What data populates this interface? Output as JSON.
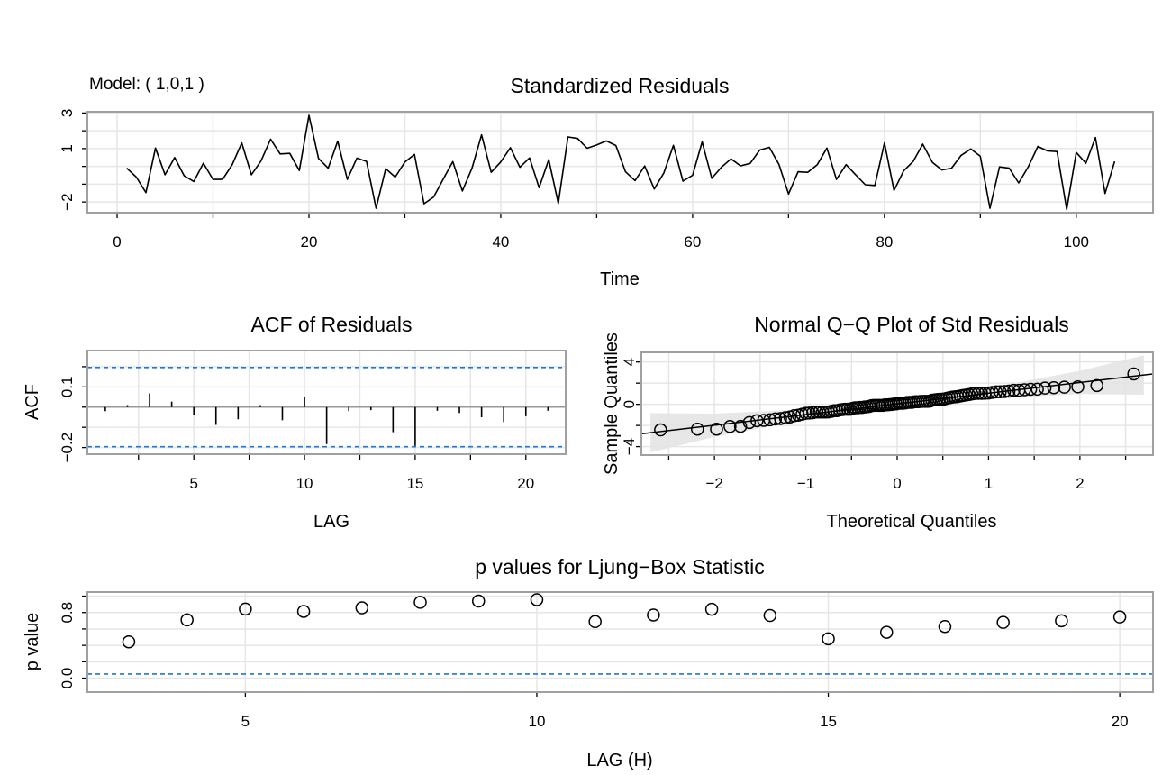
{
  "colors": {
    "grid": "#e6e6e6",
    "frame": "#a0a0a0",
    "bound": "#1f77d4",
    "band": "#e3e3e3",
    "ink": "#000000"
  },
  "chart_data": [
    {
      "id": "residuals",
      "type": "line",
      "title": "Standardized Residuals",
      "subtitle": "Model: ( 1,0,1 )",
      "xlabel": "Time",
      "ylabel": "",
      "xlim": [
        -3.1,
        108
      ],
      "ylim": [
        -2.6,
        3.07
      ],
      "x_grid": [
        0,
        10,
        20,
        30,
        40,
        50,
        60,
        70,
        80,
        90,
        100
      ],
      "y_grid": [
        -2,
        -1,
        0,
        1,
        2,
        3
      ],
      "x_tick_labels": [
        {
          "v": 0,
          "t": "0"
        },
        {
          "v": 20,
          "t": "20"
        },
        {
          "v": 40,
          "t": "40"
        },
        {
          "v": 60,
          "t": "60"
        },
        {
          "v": 80,
          "t": "80"
        },
        {
          "v": 100,
          "t": "100"
        }
      ],
      "y_tick_labels": [
        {
          "v": 3,
          "t": "3"
        },
        {
          "v": 1,
          "t": "1"
        },
        {
          "v": -2,
          "t": "−2"
        }
      ],
      "x_start": 1,
      "values": [
        -0.1,
        -0.6,
        -1.47,
        1.03,
        -0.47,
        0.5,
        -0.53,
        -0.85,
        0.18,
        -0.73,
        -0.73,
        0.1,
        1.32,
        -0.47,
        0.3,
        1.53,
        0.7,
        0.73,
        -0.23,
        2.87,
        0.45,
        -0.1,
        1.42,
        -0.73,
        0.47,
        0.28,
        -2.35,
        -0.13,
        -0.6,
        0.25,
        0.67,
        -2.1,
        -1.72,
        -0.72,
        0.27,
        -1.38,
        -0.1,
        1.77,
        -0.33,
        0.25,
        1.05,
        -0.05,
        0.48,
        -1.2,
        0.38,
        -2.08,
        1.65,
        1.57,
        1.02,
        1.2,
        1.43,
        1.17,
        -0.3,
        -0.8,
        0.02,
        -1.27,
        -0.38,
        1.18,
        -0.83,
        -0.5,
        1.38,
        -0.67,
        -0.05,
        0.42,
        0.03,
        0.17,
        0.92,
        1.07,
        0.12,
        -1.55,
        -0.3,
        -0.33,
        0.1,
        1.03,
        -0.73,
        0.1,
        -0.47,
        -1.03,
        -1.07,
        1.32,
        -1.35,
        -0.25,
        0.28,
        1.25,
        0.23,
        -0.2,
        -0.1,
        0.62,
        0.98,
        0.57,
        -2.35,
        -0.03,
        -0.1,
        -0.93,
        -0.02,
        1.12,
        0.87,
        0.83,
        -2.42,
        0.78,
        0.18,
        1.62,
        -1.52,
        0.28
      ]
    },
    {
      "id": "acf",
      "type": "bar",
      "title": "ACF of Residuals",
      "xlabel": "LAG",
      "ylabel": "ACF",
      "xlim": [
        0.19,
        21.8
      ],
      "ylim": [
        -0.233,
        0.28
      ],
      "x_grid": [
        2.5,
        5,
        7.5,
        10,
        12.5,
        15,
        17.5,
        20
      ],
      "y_grid": [
        -0.2,
        -0.1,
        0,
        0.1,
        0.2
      ],
      "x_tick_labels": [
        {
          "v": 5,
          "t": "5"
        },
        {
          "v": 10,
          "t": "10"
        },
        {
          "v": 15,
          "t": "15"
        },
        {
          "v": 20,
          "t": "20"
        }
      ],
      "y_tick_labels": [
        {
          "v": 0.1,
          "t": "0.1"
        },
        {
          "v": -0.2,
          "t": "−0.2"
        }
      ],
      "conf_bounds": [
        -0.196,
        0.196
      ],
      "lags": [
        1,
        2,
        3,
        4,
        5,
        6,
        7,
        8,
        9,
        10,
        11,
        12,
        13,
        14,
        15,
        16,
        17,
        18,
        19,
        20,
        21
      ],
      "values": [
        -0.02,
        0.01,
        0.068,
        0.027,
        -0.04,
        -0.088,
        -0.06,
        0.01,
        -0.065,
        0.048,
        -0.183,
        -0.02,
        -0.015,
        -0.124,
        -0.192,
        -0.018,
        -0.029,
        -0.05,
        -0.074,
        -0.045,
        -0.018
      ]
    },
    {
      "id": "qq",
      "type": "scatter",
      "title": "Normal Q−Q Plot of Std Residuals",
      "xlabel": "Theoretical Quantiles",
      "ylabel": "Sample Quantiles",
      "xlim": [
        -2.8,
        2.8
      ],
      "ylim": [
        -4.8,
        4.91
      ],
      "x_grid": [
        -2.5,
        -2,
        -1.5,
        -1,
        -0.5,
        0,
        0.5,
        1,
        1.5,
        2,
        2.5
      ],
      "y_grid": [
        -4,
        -2,
        0,
        2,
        4
      ],
      "x_tick_labels": [
        {
          "v": -2,
          "t": "−2"
        },
        {
          "v": -1,
          "t": "−1"
        },
        {
          "v": 0,
          "t": "0"
        },
        {
          "v": 1,
          "t": "1"
        },
        {
          "v": 2,
          "t": "2"
        }
      ],
      "y_tick_labels": [
        {
          "v": 4,
          "t": "4"
        },
        {
          "v": 0,
          "t": "0"
        },
        {
          "v": -4,
          "t": "−4"
        }
      ],
      "sample_source": "residuals",
      "ref_line": {
        "intercept": 0.04,
        "slope": 1.01
      },
      "band": {
        "x": [
          -2.7,
          -2,
          -1,
          0,
          1,
          2,
          2.7
        ],
        "half_width": [
          1.86,
          1.1,
          0.5,
          0.3,
          0.5,
          1.1,
          1.86
        ]
      }
    },
    {
      "id": "ljungbox",
      "type": "scatter",
      "title": "p values for Ljung−Box Statistic",
      "xlabel": "LAG (H)",
      "ylabel": "p value",
      "xlim": [
        2.29,
        20.57
      ],
      "ylim": [
        -0.17,
        1.05
      ],
      "x_grid": [
        5,
        10,
        15,
        20
      ],
      "y_grid": [
        0,
        0.2,
        0.4,
        0.6,
        0.8,
        1.0
      ],
      "x_tick_labels": [
        {
          "v": 5,
          "t": "5"
        },
        {
          "v": 10,
          "t": "10"
        },
        {
          "v": 15,
          "t": "15"
        },
        {
          "v": 20,
          "t": "20"
        }
      ],
      "y_tick_labels": [
        {
          "v": 0.8,
          "t": "0.8"
        },
        {
          "v": 0,
          "t": "0.0"
        }
      ],
      "significance": 0.05,
      "lags": [
        3,
        4,
        5,
        6,
        7,
        8,
        9,
        10,
        11,
        12,
        13,
        14,
        15,
        16,
        17,
        18,
        19,
        20
      ],
      "values": [
        0.443,
        0.71,
        0.843,
        0.814,
        0.857,
        0.925,
        0.94,
        0.957,
        0.69,
        0.77,
        0.84,
        0.764,
        0.48,
        0.56,
        0.63,
        0.68,
        0.7,
        0.746
      ]
    }
  ]
}
